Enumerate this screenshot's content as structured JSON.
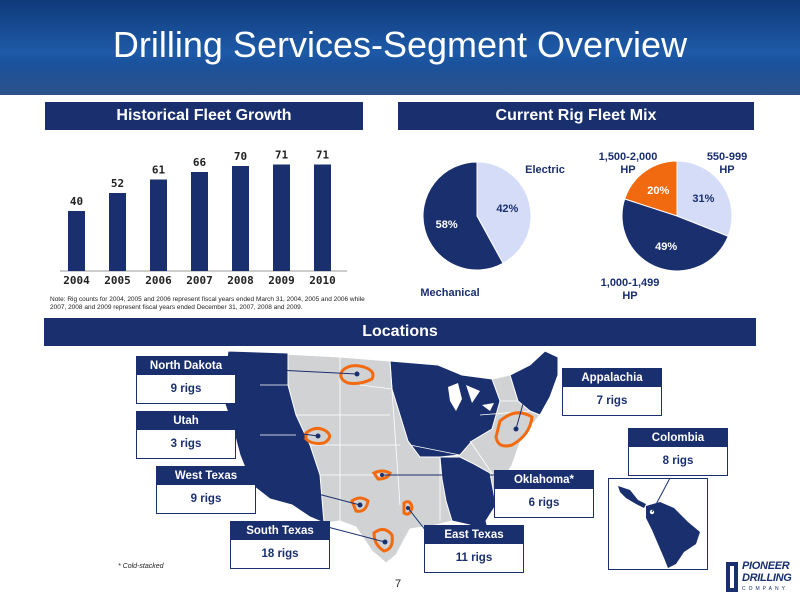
{
  "title": "Drilling Services-Segment Overview",
  "fleet_growth": {
    "banner": "Historical Fleet Growth",
    "note": "Note: Rig counts for 2004, 2005 and 2006 represent fiscal years ended March 31, 2004, 2005 and 2006 while 2007, 2008 and 2009 represent fiscal years ended December 31, 2007, 2008 and 2009."
  },
  "fleet_mix": {
    "banner": "Current Rig Fleet Mix",
    "pie1": {
      "electric_label": "Electric",
      "mechanical_label": "Mechanical",
      "pct_electric": "42%",
      "pct_mechanical": "58%"
    },
    "pie2": {
      "label_1500": "1,500-2,000 HP",
      "label_550": "550-999 HP",
      "label_1000": "1,000-1,499 HP",
      "pct_1500": "20%",
      "pct_550": "31%",
      "pct_1000": "49%"
    }
  },
  "locations": {
    "banner": "Locations",
    "boxes": [
      {
        "name": "North Dakota",
        "rigs": "9 rigs"
      },
      {
        "name": "Utah",
        "rigs": "3 rigs"
      },
      {
        "name": "West Texas",
        "rigs": "9 rigs"
      },
      {
        "name": "South Texas",
        "rigs": "18 rigs"
      },
      {
        "name": "East Texas",
        "rigs": "11 rigs"
      },
      {
        "name": "Oklahoma*",
        "rigs": "6 rigs"
      },
      {
        "name": "Appalachia",
        "rigs": "7 rigs"
      },
      {
        "name": "Colombia",
        "rigs": "8 rigs"
      }
    ],
    "footnote": "* Cold-stacked"
  },
  "page_number": "7",
  "logo": {
    "line1": "PIONEER",
    "line2": "DRILLING",
    "line3": "COMPANY"
  },
  "colors": {
    "navy": "#1a2f6e",
    "light_blue": "#d4dcf7",
    "orange": "#f26a10",
    "map_grey": "#d0d2d4"
  },
  "chart_data": [
    {
      "type": "bar",
      "categories": [
        "2004",
        "2005",
        "2006",
        "2007",
        "2008",
        "2009",
        "2010"
      ],
      "values": [
        40,
        52,
        61,
        66,
        70,
        71,
        71
      ],
      "title": "Historical Fleet Growth",
      "xlabel": "",
      "ylabel": "",
      "ylim": [
        0,
        80
      ],
      "grid": false
    },
    {
      "type": "pie",
      "categories": [
        "Electric",
        "Mechanical"
      ],
      "values": [
        42,
        58
      ],
      "colors": [
        "#d4dcf7",
        "#1a2f6e"
      ]
    },
    {
      "type": "pie",
      "categories": [
        "1,500-2,000 HP",
        "550-999 HP",
        "1,000-1,499 HP"
      ],
      "values": [
        20,
        31,
        49
      ],
      "colors": [
        "#f26a10",
        "#d4dcf7",
        "#1a2f6e"
      ]
    }
  ]
}
